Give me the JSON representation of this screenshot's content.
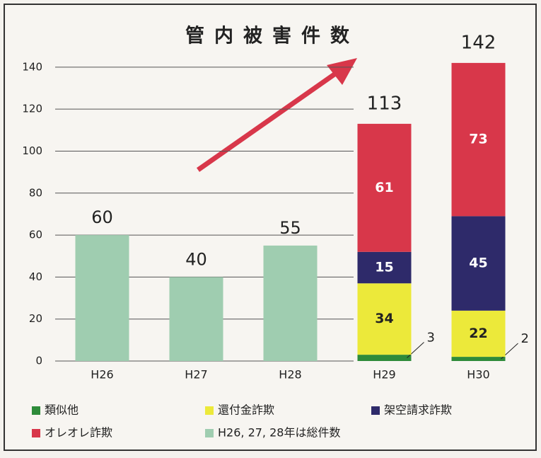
{
  "chart_data": {
    "type": "bar",
    "stacked": true,
    "title": "管内被害件数",
    "categories": [
      "H26",
      "H27",
      "H28",
      "H29",
      "H30"
    ],
    "series": [
      {
        "name": "類似他",
        "color": "#2e8b3a",
        "values": [
          null,
          null,
          null,
          3,
          2
        ]
      },
      {
        "name": "還付金詐欺",
        "color": "#ece93a",
        "values": [
          null,
          null,
          null,
          34,
          22
        ]
      },
      {
        "name": "架空請求詐欺",
        "color": "#2e2a6a",
        "values": [
          null,
          null,
          null,
          15,
          45
        ]
      },
      {
        "name": "オレオレ詐欺",
        "color": "#d8374a",
        "values": [
          null,
          null,
          null,
          61,
          73
        ]
      },
      {
        "name": "H26, 27, 28年は総件数",
        "color": "#9fcdb0",
        "values": [
          60,
          40,
          55,
          null,
          null
        ]
      }
    ],
    "totals": [
      null,
      null,
      null,
      113,
      142
    ],
    "ylim": [
      0,
      145
    ],
    "yticks": [
      0,
      20,
      40,
      60,
      80,
      100,
      120,
      140
    ],
    "grid": true
  }
}
